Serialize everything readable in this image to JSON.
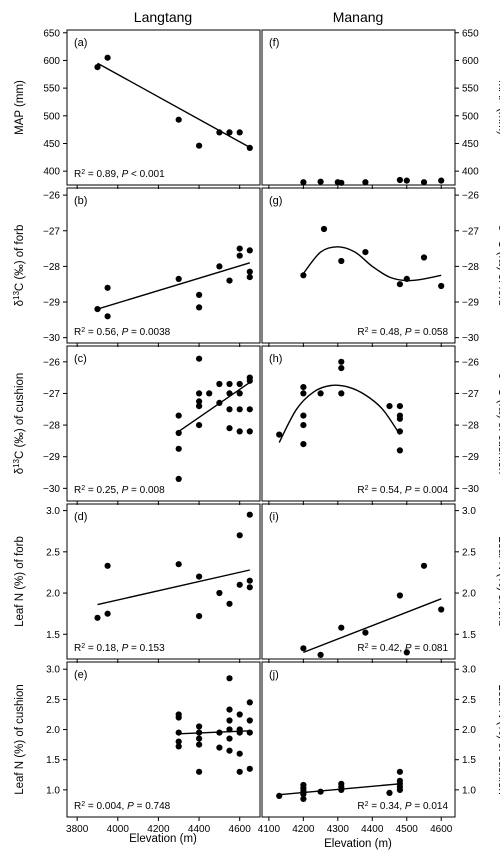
{
  "figure": {
    "column_titles": [
      "Langtang",
      "Manang"
    ],
    "x_axis_label": "Elevation (m)"
  },
  "chart_data": [
    {
      "type": "scatter",
      "panel": "(a)",
      "site": "Langtang",
      "ylabel": "MAP (mm)",
      "xlim": [
        3750,
        4700
      ],
      "ylim": [
        375,
        655
      ],
      "yticks": [
        400,
        450,
        500,
        550,
        600,
        650
      ],
      "ytick_side": "left",
      "xticks": [
        3800,
        4000,
        4200,
        4400,
        4600
      ],
      "points": [
        [
          3900,
          588
        ],
        [
          3950,
          605
        ],
        [
          4300,
          493
        ],
        [
          4400,
          446
        ],
        [
          4500,
          470
        ],
        [
          4550,
          470
        ],
        [
          4600,
          470
        ],
        [
          4650,
          442
        ]
      ],
      "fit": {
        "type": "linear",
        "x": [
          3900,
          4650
        ],
        "y": [
          595,
          443
        ]
      },
      "stat_text": "R² = 0.89, P < 0.001",
      "stat_pos": "bottom-left"
    },
    {
      "type": "scatter",
      "panel": "(b)",
      "site": "Langtang",
      "ylabel": "δ13C (‰) of forb",
      "xlim": [
        3750,
        4700
      ],
      "ylim": [
        -30.15,
        -25.8
      ],
      "yticks": [
        -30,
        -29,
        -28,
        -27,
        -26
      ],
      "ytick_side": "left",
      "xticks": [
        3800,
        4000,
        4200,
        4400,
        4600
      ],
      "points": [
        [
          3900,
          -29.2
        ],
        [
          3950,
          -28.6
        ],
        [
          3950,
          -29.4
        ],
        [
          4300,
          -28.35
        ],
        [
          4400,
          -28.8
        ],
        [
          4400,
          -29.15
        ],
        [
          4500,
          -28.0
        ],
        [
          4550,
          -28.4
        ],
        [
          4600,
          -27.5
        ],
        [
          4600,
          -27.7
        ],
        [
          4650,
          -27.55
        ],
        [
          4650,
          -28.15
        ],
        [
          4650,
          -28.3
        ]
      ],
      "fit": {
        "type": "linear",
        "x": [
          3900,
          4650
        ],
        "y": [
          -29.2,
          -27.9
        ]
      },
      "stat_text": "R² = 0.56, P = 0.0038",
      "stat_pos": "bottom-left"
    },
    {
      "type": "scatter",
      "panel": "(c)",
      "site": "Langtang",
      "ylabel": "δ13C (‰) of cushion",
      "xlim": [
        3750,
        4700
      ],
      "ylim": [
        -30.4,
        -25.5
      ],
      "yticks": [
        -30,
        -29,
        -28,
        -27,
        -26
      ],
      "ytick_side": "left",
      "xticks": [
        3800,
        4000,
        4200,
        4400,
        4600
      ],
      "points": [
        [
          4300,
          -27.7
        ],
        [
          4300,
          -28.25
        ],
        [
          4300,
          -28.75
        ],
        [
          4300,
          -29.7
        ],
        [
          4400,
          -25.9
        ],
        [
          4400,
          -27.0
        ],
        [
          4400,
          -27.25
        ],
        [
          4400,
          -27.4
        ],
        [
          4400,
          -28.0
        ],
        [
          4450,
          -27.0
        ],
        [
          4500,
          -26.7
        ],
        [
          4500,
          -27.3
        ],
        [
          4550,
          -26.7
        ],
        [
          4550,
          -27.0
        ],
        [
          4550,
          -27.5
        ],
        [
          4550,
          -28.1
        ],
        [
          4600,
          -26.7
        ],
        [
          4600,
          -27.0
        ],
        [
          4600,
          -27.5
        ],
        [
          4600,
          -28.2
        ],
        [
          4650,
          -26.5
        ],
        [
          4650,
          -26.6
        ],
        [
          4650,
          -27.5
        ],
        [
          4650,
          -28.2
        ]
      ],
      "fit": {
        "type": "linear",
        "x": [
          4300,
          4650
        ],
        "y": [
          -28.2,
          -26.65
        ]
      },
      "stat_text": "R² = 0.25, P = 0.008",
      "stat_pos": "bottom-left"
    },
    {
      "type": "scatter",
      "panel": "(d)",
      "site": "Langtang",
      "ylabel": "Leaf N (%) of forb",
      "xlim": [
        3750,
        4700
      ],
      "ylim": [
        1.2,
        3.08
      ],
      "yticks": [
        1.5,
        2.0,
        2.5,
        3.0
      ],
      "ytick_side": "left",
      "xticks": [
        3800,
        4000,
        4200,
        4400,
        4600
      ],
      "points": [
        [
          3900,
          1.7
        ],
        [
          3950,
          1.75
        ],
        [
          3950,
          2.33
        ],
        [
          4300,
          2.35
        ],
        [
          4400,
          1.72
        ],
        [
          4400,
          2.2
        ],
        [
          4500,
          2.0
        ],
        [
          4550,
          1.87
        ],
        [
          4600,
          2.1
        ],
        [
          4600,
          2.7
        ],
        [
          4650,
          2.07
        ],
        [
          4650,
          2.15
        ],
        [
          4650,
          2.95
        ]
      ],
      "fit": {
        "type": "linear",
        "x": [
          3900,
          4650
        ],
        "y": [
          1.86,
          2.28
        ]
      },
      "stat_text": "R² = 0.18, P = 0.153",
      "stat_pos": "bottom-left"
    },
    {
      "type": "scatter",
      "panel": "(e)",
      "site": "Langtang",
      "ylabel": "Leaf N (%) of cushion",
      "xlim": [
        3750,
        4700
      ],
      "ylim": [
        0.55,
        3.12
      ],
      "yticks": [
        1.0,
        1.5,
        2.0,
        2.5,
        3.0
      ],
      "ytick_side": "left",
      "xticks": [
        3800,
        4000,
        4200,
        4400,
        4600
      ],
      "points": [
        [
          4300,
          1.72
        ],
        [
          4300,
          1.8
        ],
        [
          4300,
          1.95
        ],
        [
          4300,
          2.2
        ],
        [
          4300,
          2.25
        ],
        [
          4400,
          1.3
        ],
        [
          4400,
          1.75
        ],
        [
          4400,
          1.85
        ],
        [
          4400,
          1.95
        ],
        [
          4400,
          2.05
        ],
        [
          4500,
          1.7
        ],
        [
          4500,
          1.95
        ],
        [
          4550,
          1.65
        ],
        [
          4550,
          1.85
        ],
        [
          4550,
          2.0
        ],
        [
          4550,
          2.15
        ],
        [
          4550,
          2.33
        ],
        [
          4550,
          2.85
        ],
        [
          4600,
          1.3
        ],
        [
          4600,
          1.6
        ],
        [
          4600,
          1.95
        ],
        [
          4600,
          2.0
        ],
        [
          4600,
          2.25
        ],
        [
          4650,
          1.35
        ],
        [
          4650,
          1.95
        ],
        [
          4650,
          2.15
        ],
        [
          4650,
          2.45
        ]
      ],
      "fit": {
        "type": "linear",
        "x": [
          4300,
          4650
        ],
        "y": [
          1.93,
          1.98
        ]
      },
      "stat_text": "R² = 0.004, P = 0.748",
      "stat_pos": "bottom-left"
    },
    {
      "type": "scatter",
      "panel": "(f)",
      "site": "Manang",
      "ylabel": "MAP (mm)",
      "xlim": [
        4080,
        4640
      ],
      "ylim": [
        375,
        655
      ],
      "yticks": [
        400,
        450,
        500,
        550,
        600,
        650
      ],
      "ytick_side": "right",
      "xticks": [
        4100,
        4200,
        4300,
        4400,
        4500,
        4600
      ],
      "points": [
        [
          4200,
          380
        ],
        [
          4250,
          381
        ],
        [
          4300,
          380
        ],
        [
          4310,
          379
        ],
        [
          4380,
          380
        ],
        [
          4480,
          384
        ],
        [
          4500,
          383
        ],
        [
          4550,
          380
        ],
        [
          4600,
          383
        ]
      ],
      "fit": null,
      "stat_text": "",
      "stat_pos": "bottom-right"
    },
    {
      "type": "scatter",
      "panel": "(g)",
      "site": "Manang",
      "ylabel": "δ13C (‰) of forb",
      "xlim": [
        4080,
        4640
      ],
      "ylim": [
        -30.15,
        -25.8
      ],
      "yticks": [
        -30,
        -29,
        -28,
        -27,
        -26
      ],
      "ytick_side": "right",
      "xticks": [
        4100,
        4200,
        4300,
        4400,
        4500,
        4600
      ],
      "points": [
        [
          4200,
          -28.25
        ],
        [
          4260,
          -26.95
        ],
        [
          4310,
          -27.85
        ],
        [
          4380,
          -27.6
        ],
        [
          4480,
          -28.5
        ],
        [
          4500,
          -28.35
        ],
        [
          4550,
          -27.75
        ],
        [
          4600,
          -28.55
        ]
      ],
      "fit": {
        "type": "curve",
        "x": [
          4200,
          4250,
          4300,
          4350,
          4400,
          4450,
          4500,
          4550,
          4600
        ],
        "y": [
          -28.2,
          -27.6,
          -27.45,
          -27.6,
          -28.0,
          -28.3,
          -28.4,
          -28.35,
          -28.25
        ]
      },
      "stat_text": "R² = 0.48, P = 0.058",
      "stat_pos": "bottom-right"
    },
    {
      "type": "scatter",
      "panel": "(h)",
      "site": "Manang",
      "ylabel": "δ13C (‰) of cushion",
      "xlim": [
        4080,
        4640
      ],
      "ylim": [
        -30.4,
        -25.5
      ],
      "yticks": [
        -30,
        -29,
        -28,
        -27,
        -26
      ],
      "ytick_side": "right",
      "xticks": [
        4100,
        4200,
        4300,
        4400,
        4500,
        4600
      ],
      "points": [
        [
          4130,
          -28.3
        ],
        [
          4200,
          -26.8
        ],
        [
          4200,
          -27.0
        ],
        [
          4200,
          -27.7
        ],
        [
          4200,
          -28.0
        ],
        [
          4200,
          -28.6
        ],
        [
          4250,
          -27.0
        ],
        [
          4310,
          -26.0
        ],
        [
          4310,
          -26.2
        ],
        [
          4310,
          -27.0
        ],
        [
          4450,
          -27.4
        ],
        [
          4480,
          -27.4
        ],
        [
          4480,
          -27.7
        ],
        [
          4480,
          -27.8
        ],
        [
          4480,
          -28.2
        ],
        [
          4480,
          -28.8
        ]
      ],
      "fit": {
        "type": "curve",
        "x": [
          4130,
          4180,
          4230,
          4280,
          4330,
          4380,
          4430,
          4480
        ],
        "y": [
          -28.55,
          -27.5,
          -26.95,
          -26.75,
          -26.8,
          -27.05,
          -27.5,
          -28.3
        ]
      },
      "stat_text": "R² = 0.54, P = 0.004",
      "stat_pos": "bottom-right"
    },
    {
      "type": "scatter",
      "panel": "(i)",
      "site": "Manang",
      "ylabel": "Leaf N (%) of forb",
      "xlim": [
        4080,
        4640
      ],
      "ylim": [
        1.2,
        3.08
      ],
      "yticks": [
        1.5,
        2.0,
        2.5,
        3.0
      ],
      "ytick_side": "right",
      "xticks": [
        4100,
        4200,
        4300,
        4400,
        4500,
        4600
      ],
      "points": [
        [
          4200,
          1.33
        ],
        [
          4250,
          1.25
        ],
        [
          4310,
          1.58
        ],
        [
          4380,
          1.52
        ],
        [
          4480,
          1.97
        ],
        [
          4500,
          1.28
        ],
        [
          4550,
          2.33
        ],
        [
          4600,
          1.8
        ]
      ],
      "fit": {
        "type": "linear",
        "x": [
          4200,
          4600
        ],
        "y": [
          1.28,
          1.93
        ]
      },
      "stat_text": "R² = 0.42, P = 0.081",
      "stat_pos": "bottom-right"
    },
    {
      "type": "scatter",
      "panel": "(j)",
      "site": "Manang",
      "ylabel": "Leaf N (%) of cushion",
      "xlim": [
        4080,
        4640
      ],
      "ylim": [
        0.55,
        3.12
      ],
      "yticks": [
        1.0,
        1.5,
        2.0,
        2.5,
        3.0
      ],
      "ytick_side": "right",
      "xticks": [
        4100,
        4200,
        4300,
        4400,
        4500,
        4600
      ],
      "points": [
        [
          4130,
          0.9
        ],
        [
          4200,
          0.85
        ],
        [
          4200,
          0.93
        ],
        [
          4200,
          0.98
        ],
        [
          4200,
          1.03
        ],
        [
          4200,
          1.08
        ],
        [
          4250,
          0.97
        ],
        [
          4310,
          1.0
        ],
        [
          4310,
          1.05
        ],
        [
          4310,
          1.1
        ],
        [
          4450,
          0.95
        ],
        [
          4480,
          1.0
        ],
        [
          4480,
          1.05
        ],
        [
          4480,
          1.1
        ],
        [
          4480,
          1.15
        ],
        [
          4480,
          1.3
        ]
      ],
      "fit": {
        "type": "linear",
        "x": [
          4130,
          4480
        ],
        "y": [
          0.92,
          1.1
        ]
      },
      "stat_text": "R² = 0.34, P = 0.014",
      "stat_pos": "bottom-right"
    }
  ]
}
